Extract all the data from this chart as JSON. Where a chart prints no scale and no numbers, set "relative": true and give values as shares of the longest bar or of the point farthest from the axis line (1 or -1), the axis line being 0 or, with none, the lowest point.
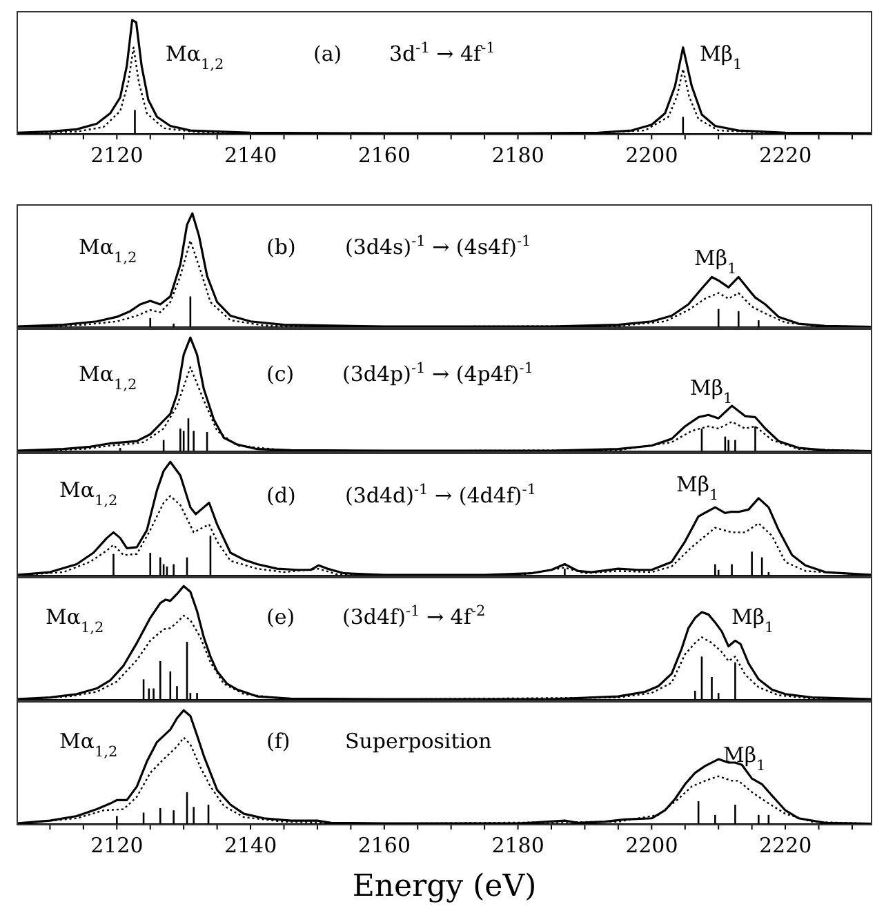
{
  "chart_data": [
    {
      "type": "line",
      "relative": true,
      "xlim": [
        2105,
        2233
      ],
      "xticks": [
        {
          "value": 2110,
          "label": null
        },
        {
          "value": 2115,
          "label": null
        },
        2120,
        {
          "value": 2125,
          "label": null
        },
        {
          "value": 2130,
          "label": null
        },
        {
          "value": 2135,
          "label": null
        },
        2140,
        {
          "value": 2145,
          "label": null
        },
        {
          "value": 2150,
          "label": null
        },
        {
          "value": 2155,
          "label": null
        },
        2160,
        {
          "value": 2165,
          "label": null
        },
        {
          "value": 2170,
          "label": null
        },
        {
          "value": 2175,
          "label": null
        },
        2180,
        {
          "value": 2185,
          "label": null
        },
        {
          "value": 2190,
          "label": null
        },
        {
          "value": 2195,
          "label": null
        },
        2200,
        {
          "value": 2205,
          "label": null
        },
        {
          "value": 2210,
          "label": null
        },
        {
          "value": 2215,
          "label": null
        },
        2220,
        {
          "value": 2225,
          "label": null
        },
        {
          "value": 2230,
          "label": null
        }
      ],
      "tick_labels": "x",
      "annotations": [
        "Mα$_{1,2}$",
        "(a)",
        "3d$^{-1}$ → 4f$^{-1}$",
        "Mβ$_{1}$"
      ],
      "series": [
        {
          "color": "#000000",
          "x": [
            2105,
            2110,
            2114,
            2117,
            2119,
            2120.5,
            2121.5,
            2122.3,
            2122.9,
            2123.7,
            2124.7,
            2126,
            2128,
            2131,
            2140,
            2160,
            2180,
            2192,
            2197,
            2200,
            2202,
            2203.5,
            2204.7,
            2206,
            2207.5,
            2209.5,
            2213,
            2220,
            2233
          ],
          "values": [
            0.01,
            0.02,
            0.04,
            0.09,
            0.18,
            0.32,
            0.6,
            1.0,
            0.98,
            0.6,
            0.3,
            0.15,
            0.07,
            0.03,
            0.01,
            0.005,
            0.005,
            0.01,
            0.03,
            0.08,
            0.18,
            0.42,
            0.76,
            0.42,
            0.17,
            0.07,
            0.03,
            0.01,
            0.005
          ]
        },
        {
          "color": "#000000",
          "line_style": "dotted",
          "x": [
            2105,
            2114,
            2118,
            2120.5,
            2121.7,
            2122.5,
            2123.3,
            2124.5,
            2127,
            2132,
            2150,
            2190,
            2199,
            2202.5,
            2203.8,
            2204.7,
            2205.6,
            2207,
            2210,
            2220,
            2233
          ],
          "values": [
            0.005,
            0.02,
            0.06,
            0.2,
            0.45,
            0.76,
            0.45,
            0.18,
            0.05,
            0.015,
            0.003,
            0.003,
            0.03,
            0.15,
            0.33,
            0.57,
            0.33,
            0.13,
            0.03,
            0.005,
            0.002
          ]
        },
        {
          "type": "bar",
          "color": "#000000",
          "x": [
            2122.7,
            2204.7
          ],
          "values": [
            0.21,
            0.15
          ]
        }
      ]
    },
    {
      "type": "line",
      "relative": true,
      "xlim": [
        2105,
        2233
      ],
      "xticks": [
        {
          "value": 2110,
          "label": null
        },
        {
          "value": 2115,
          "label": null
        },
        2120,
        {
          "value": 2125,
          "label": null
        },
        {
          "value": 2130,
          "label": null
        },
        {
          "value": 2135,
          "label": null
        },
        2140,
        {
          "value": 2145,
          "label": null
        },
        {
          "value": 2150,
          "label": null
        },
        {
          "value": 2155,
          "label": null
        },
        2160,
        {
          "value": 2165,
          "label": null
        },
        {
          "value": 2170,
          "label": null
        },
        {
          "value": 2175,
          "label": null
        },
        2180,
        {
          "value": 2185,
          "label": null
        },
        {
          "value": 2190,
          "label": null
        },
        {
          "value": 2195,
          "label": null
        },
        2200,
        {
          "value": 2205,
          "label": null
        },
        {
          "value": 2210,
          "label": null
        },
        {
          "value": 2215,
          "label": null
        },
        2220,
        {
          "value": 2225,
          "label": null
        },
        {
          "value": 2230,
          "label": null
        }
      ],
      "tick_labels": false,
      "annotations": [
        "Mα$_{1,2}$",
        "(b)",
        "(3d4s)$^{-1}$ → (4s4f)$^{-1}$",
        "Mβ$_{1}$"
      ],
      "series": [
        {
          "color": "#000000",
          "x": [
            2105,
            2112,
            2117,
            2120,
            2122,
            2123.5,
            2125,
            2126.5,
            2128,
            2129.5,
            2130.5,
            2131.3,
            2132.3,
            2133.5,
            2135,
            2137,
            2140,
            2145,
            2160,
            2185,
            2195,
            2200,
            2203,
            2205.5,
            2207.5,
            2209,
            2210,
            2211.5,
            2213,
            2214.5,
            2215.5,
            2217,
            2219,
            2222,
            2226,
            2233
          ],
          "values": [
            0.005,
            0.02,
            0.05,
            0.09,
            0.14,
            0.2,
            0.23,
            0.2,
            0.27,
            0.55,
            0.9,
            1.0,
            0.8,
            0.45,
            0.22,
            0.1,
            0.05,
            0.02,
            0.005,
            0.005,
            0.02,
            0.05,
            0.1,
            0.2,
            0.34,
            0.44,
            0.41,
            0.35,
            0.44,
            0.33,
            0.26,
            0.2,
            0.09,
            0.03,
            0.01,
            0.003
          ]
        },
        {
          "color": "#000000",
          "line_style": "dotted",
          "x": [
            2105,
            2115,
            2120,
            2123,
            2125,
            2126.5,
            2128,
            2129.5,
            2131,
            2132.5,
            2134,
            2137,
            2142,
            2160,
            2195,
            2202,
            2205.5,
            2208,
            2210,
            2211.5,
            2213,
            2215,
            2217,
            2220,
            2225,
            2233
          ],
          "values": [
            0.003,
            0.02,
            0.05,
            0.1,
            0.15,
            0.13,
            0.22,
            0.45,
            0.76,
            0.5,
            0.22,
            0.06,
            0.015,
            0.003,
            0.01,
            0.05,
            0.15,
            0.25,
            0.3,
            0.25,
            0.3,
            0.18,
            0.12,
            0.04,
            0.01,
            0.002
          ]
        },
        {
          "type": "bar",
          "color": "#000000",
          "x": [
            2125,
            2128.5,
            2131,
            2210,
            2213,
            2216
          ],
          "values": [
            0.08,
            0.03,
            0.27,
            0.16,
            0.14,
            0.06
          ]
        }
      ]
    },
    {
      "type": "line",
      "relative": true,
      "xlim": [
        2105,
        2233
      ],
      "xticks": [
        {
          "value": 2110,
          "label": null
        },
        {
          "value": 2115,
          "label": null
        },
        2120,
        {
          "value": 2125,
          "label": null
        },
        {
          "value": 2130,
          "label": null
        },
        {
          "value": 2135,
          "label": null
        },
        2140,
        {
          "value": 2145,
          "label": null
        },
        {
          "value": 2150,
          "label": null
        },
        {
          "value": 2155,
          "label": null
        },
        2160,
        {
          "value": 2165,
          "label": null
        },
        {
          "value": 2170,
          "label": null
        },
        {
          "value": 2175,
          "label": null
        },
        2180,
        {
          "value": 2185,
          "label": null
        },
        {
          "value": 2190,
          "label": null
        },
        {
          "value": 2195,
          "label": null
        },
        2200,
        {
          "value": 2205,
          "label": null
        },
        {
          "value": 2210,
          "label": null
        },
        {
          "value": 2215,
          "label": null
        },
        2220,
        {
          "value": 2225,
          "label": null
        },
        {
          "value": 2230,
          "label": null
        }
      ],
      "tick_labels": false,
      "annotations": [
        "Mα$_{1,2}$",
        "(c)",
        "(3d4p)$^{-1}$ → (4p4f)$^{-1}$",
        "Mβ$_{1}$"
      ],
      "series": [
        {
          "color": "#000000",
          "x": [
            2105,
            2112,
            2116,
            2119,
            2121,
            2123,
            2125,
            2127,
            2128,
            2129,
            2130,
            2131,
            2132,
            2133,
            2134.5,
            2136,
            2138,
            2141,
            2146,
            2160,
            2185,
            2195,
            2200,
            2203,
            2205,
            2207,
            2208.5,
            2210,
            2212,
            2214,
            2215.5,
            2217,
            2219,
            2222,
            2226,
            2233
          ],
          "values": [
            0.005,
            0.02,
            0.04,
            0.07,
            0.08,
            0.09,
            0.15,
            0.27,
            0.33,
            0.5,
            0.85,
            1.0,
            0.85,
            0.55,
            0.28,
            0.12,
            0.06,
            0.02,
            0.01,
            0.005,
            0.005,
            0.02,
            0.05,
            0.11,
            0.22,
            0.3,
            0.32,
            0.29,
            0.4,
            0.31,
            0.3,
            0.2,
            0.09,
            0.03,
            0.01,
            0.003
          ]
        },
        {
          "color": "#000000",
          "line_style": "dotted",
          "x": [
            2105,
            2115,
            2119,
            2121,
            2124,
            2127,
            2129,
            2131,
            2133,
            2135,
            2138,
            2145,
            2160,
            2195,
            2203,
            2206,
            2208.5,
            2210,
            2212,
            2214,
            2215.5,
            2218,
            2222,
            2233
          ],
          "values": [
            0.003,
            0.02,
            0.05,
            0.06,
            0.08,
            0.2,
            0.4,
            0.74,
            0.45,
            0.18,
            0.05,
            0.01,
            0.003,
            0.01,
            0.08,
            0.18,
            0.22,
            0.2,
            0.26,
            0.2,
            0.22,
            0.1,
            0.02,
            0.002
          ]
        },
        {
          "type": "bar",
          "color": "#000000",
          "x": [
            2120.5,
            2127,
            2129.5,
            2130,
            2130.7,
            2131.5,
            2133.5,
            2207.5,
            2211,
            2211.5,
            2212.5,
            2215.5
          ],
          "values": [
            0.03,
            0.1,
            0.2,
            0.18,
            0.29,
            0.18,
            0.17,
            0.2,
            0.13,
            0.1,
            0.1,
            0.22
          ]
        }
      ]
    },
    {
      "type": "line",
      "relative": true,
      "xlim": [
        2105,
        2233
      ],
      "xticks": [
        {
          "value": 2110,
          "label": null
        },
        {
          "value": 2115,
          "label": null
        },
        2120,
        {
          "value": 2125,
          "label": null
        },
        {
          "value": 2130,
          "label": null
        },
        {
          "value": 2135,
          "label": null
        },
        2140,
        {
          "value": 2145,
          "label": null
        },
        {
          "value": 2150,
          "label": null
        },
        {
          "value": 2155,
          "label": null
        },
        2160,
        {
          "value": 2165,
          "label": null
        },
        {
          "value": 2170,
          "label": null
        },
        {
          "value": 2175,
          "label": null
        },
        2180,
        {
          "value": 2185,
          "label": null
        },
        {
          "value": 2190,
          "label": null
        },
        {
          "value": 2195,
          "label": null
        },
        2200,
        {
          "value": 2205,
          "label": null
        },
        {
          "value": 2210,
          "label": null
        },
        {
          "value": 2215,
          "label": null
        },
        2220,
        {
          "value": 2225,
          "label": null
        },
        {
          "value": 2230,
          "label": null
        }
      ],
      "tick_labels": false,
      "annotations": [
        "Mα$_{1,2}$",
        "(d)",
        "(3d4d)$^{-1}$ → (4d4f)$^{-1}$",
        "Mβ$_{1}$"
      ],
      "series": [
        {
          "color": "#000000",
          "x": [
            2105,
            2110,
            2114,
            2116.5,
            2118.5,
            2119.5,
            2120.5,
            2121.5,
            2123,
            2124.5,
            2126,
            2127,
            2128,
            2129.5,
            2131,
            2131.8,
            2133,
            2133.8,
            2135,
            2137,
            2139,
            2141,
            2144,
            2147,
            2149,
            2150.2,
            2151.5,
            2154,
            2160,
            2175,
            2182,
            2185,
            2187,
            2189,
            2191,
            2195,
            2198,
            2200,
            2203,
            2205,
            2207,
            2209.5,
            2211,
            2211.8,
            2213,
            2214.5,
            2216,
            2217.5,
            2219,
            2221,
            2223,
            2226,
            2233
          ],
          "values": [
            0.005,
            0.03,
            0.1,
            0.2,
            0.33,
            0.38,
            0.33,
            0.24,
            0.25,
            0.4,
            0.75,
            0.92,
            1.0,
            0.88,
            0.6,
            0.54,
            0.6,
            0.64,
            0.45,
            0.2,
            0.14,
            0.1,
            0.06,
            0.05,
            0.05,
            0.09,
            0.06,
            0.02,
            0.005,
            0.005,
            0.02,
            0.05,
            0.1,
            0.04,
            0.03,
            0.06,
            0.05,
            0.05,
            0.12,
            0.3,
            0.52,
            0.6,
            0.55,
            0.56,
            0.56,
            0.58,
            0.68,
            0.6,
            0.4,
            0.18,
            0.09,
            0.03,
            0.005
          ]
        },
        {
          "color": "#000000",
          "line_style": "dotted",
          "x": [
            2105,
            2112,
            2116,
            2118.5,
            2119.5,
            2121,
            2123,
            2125,
            2127,
            2128,
            2129.5,
            2131.5,
            2133.8,
            2135,
            2137,
            2141,
            2145,
            2150.2,
            2153,
            2160,
            2180,
            2187,
            2190,
            2195,
            2200,
            2203,
            2206,
            2209.5,
            2212,
            2214,
            2216,
            2218,
            2220,
            2223,
            2233
          ],
          "values": [
            0.003,
            0.03,
            0.12,
            0.22,
            0.27,
            0.18,
            0.19,
            0.4,
            0.64,
            0.7,
            0.62,
            0.38,
            0.45,
            0.3,
            0.13,
            0.06,
            0.03,
            0.06,
            0.01,
            0.003,
            0.003,
            0.07,
            0.02,
            0.04,
            0.03,
            0.08,
            0.25,
            0.42,
            0.38,
            0.38,
            0.46,
            0.35,
            0.12,
            0.04,
            0.003
          ]
        },
        {
          "type": "bar",
          "color": "#000000",
          "x": [
            2119.5,
            2125,
            2126.5,
            2127,
            2127.5,
            2128.5,
            2130.5,
            2134,
            2187,
            2209.5,
            2210,
            2212,
            2215,
            2216.5,
            2217.5
          ],
          "values": [
            0.19,
            0.2,
            0.16,
            0.1,
            0.08,
            0.1,
            0.16,
            0.35,
            0.06,
            0.1,
            0.05,
            0.1,
            0.21,
            0.16,
            0.03
          ]
        }
      ]
    },
    {
      "type": "line",
      "relative": true,
      "xlim": [
        2105,
        2233
      ],
      "xticks": [
        {
          "value": 2110,
          "label": null
        },
        {
          "value": 2115,
          "label": null
        },
        2120,
        {
          "value": 2125,
          "label": null
        },
        {
          "value": 2130,
          "label": null
        },
        {
          "value": 2135,
          "label": null
        },
        2140,
        {
          "value": 2145,
          "label": null
        },
        {
          "value": 2150,
          "label": null
        },
        {
          "value": 2155,
          "label": null
        },
        2160,
        {
          "value": 2165,
          "label": null
        },
        {
          "value": 2170,
          "label": null
        },
        {
          "value": 2175,
          "label": null
        },
        2180,
        {
          "value": 2185,
          "label": null
        },
        {
          "value": 2190,
          "label": null
        },
        {
          "value": 2195,
          "label": null
        },
        2200,
        {
          "value": 2205,
          "label": null
        },
        {
          "value": 2210,
          "label": null
        },
        {
          "value": 2215,
          "label": null
        },
        2220,
        {
          "value": 2225,
          "label": null
        },
        {
          "value": 2230,
          "label": null
        }
      ],
      "tick_labels": false,
      "annotations": [
        "Mα$_{1,2}$",
        "(e)",
        "(3d4f)$^{-1}$ → 4f$^{-2}$",
        "Mβ$_{1}$"
      ],
      "series": [
        {
          "color": "#000000",
          "x": [
            2105,
            2110,
            2114,
            2117,
            2119,
            2121,
            2123,
            2125,
            2126.5,
            2127.3,
            2128,
            2129,
            2130,
            2131,
            2132,
            2133,
            2134,
            2135,
            2136.5,
            2138,
            2141,
            2146,
            2160,
            2185,
            2195,
            2199,
            2201,
            2203,
            2204.5,
            2205.5,
            2206.5,
            2207.5,
            2208.5,
            2209.5,
            2210.5,
            2211.5,
            2212.5,
            2213.3,
            2214.5,
            2216,
            2218,
            2220,
            2224,
            2233
          ],
          "values": [
            0.005,
            0.02,
            0.05,
            0.1,
            0.17,
            0.3,
            0.5,
            0.72,
            0.85,
            0.88,
            0.87,
            0.93,
            1.0,
            0.95,
            0.78,
            0.55,
            0.38,
            0.25,
            0.14,
            0.09,
            0.03,
            0.01,
            0.005,
            0.005,
            0.03,
            0.07,
            0.12,
            0.23,
            0.45,
            0.63,
            0.72,
            0.77,
            0.75,
            0.68,
            0.6,
            0.47,
            0.52,
            0.49,
            0.32,
            0.18,
            0.09,
            0.05,
            0.02,
            0.005
          ]
        },
        {
          "color": "#000000",
          "line_style": "dotted",
          "x": [
            2105,
            2113,
            2117,
            2120,
            2123,
            2125,
            2127,
            2128,
            2129,
            2130,
            2131,
            2132.5,
            2134,
            2136,
            2139,
            2145,
            2160,
            2195,
            2200,
            2203,
            2205,
            2206.5,
            2207.5,
            2209,
            2210.5,
            2211.5,
            2212.5,
            2214,
            2216,
            2219,
            2224,
            2233
          ],
          "values": [
            0.003,
            0.03,
            0.07,
            0.16,
            0.35,
            0.52,
            0.62,
            0.63,
            0.68,
            0.74,
            0.7,
            0.55,
            0.33,
            0.14,
            0.05,
            0.01,
            0.003,
            0.02,
            0.06,
            0.15,
            0.4,
            0.5,
            0.55,
            0.5,
            0.42,
            0.34,
            0.38,
            0.22,
            0.11,
            0.04,
            0.01,
            0.002
          ]
        },
        {
          "type": "bar",
          "color": "#000000",
          "x": [
            2124,
            2124.8,
            2125.5,
            2126.5,
            2128,
            2129,
            2130.5,
            2131,
            2132,
            2206.5,
            2207.5,
            2209,
            2210,
            2212.5
          ],
          "values": [
            0.18,
            0.1,
            0.1,
            0.34,
            0.25,
            0.12,
            0.51,
            0.06,
            0.06,
            0.08,
            0.38,
            0.2,
            0.06,
            0.33
          ]
        }
      ]
    },
    {
      "type": "line",
      "relative": true,
      "xlim": [
        2105,
        2233
      ],
      "xticks": [
        {
          "value": 2110,
          "label": null
        },
        {
          "value": 2115,
          "label": null
        },
        2120,
        {
          "value": 2125,
          "label": null
        },
        {
          "value": 2130,
          "label": null
        },
        {
          "value": 2135,
          "label": null
        },
        2140,
        {
          "value": 2145,
          "label": null
        },
        {
          "value": 2150,
          "label": null
        },
        {
          "value": 2155,
          "label": null
        },
        2160,
        {
          "value": 2165,
          "label": null
        },
        {
          "value": 2170,
          "label": null
        },
        {
          "value": 2175,
          "label": null
        },
        2180,
        {
          "value": 2185,
          "label": null
        },
        {
          "value": 2190,
          "label": null
        },
        {
          "value": 2195,
          "label": null
        },
        2200,
        {
          "value": 2205,
          "label": null
        },
        {
          "value": 2210,
          "label": null
        },
        {
          "value": 2215,
          "label": null
        },
        2220,
        {
          "value": 2225,
          "label": null
        },
        {
          "value": 2230,
          "label": null
        }
      ],
      "tick_labels": "x",
      "xlabel": "Energy (eV)",
      "annotations": [
        "Mα$_{1,2}$",
        "(f)",
        "Superposition",
        "Mβ$_{1}$"
      ],
      "series": [
        {
          "color": "#000000",
          "x": [
            2105,
            2110,
            2114,
            2117,
            2119,
            2120,
            2121.5,
            2123,
            2124.5,
            2126,
            2128,
            2129,
            2130,
            2131,
            2132,
            2133,
            2134,
            2135,
            2137,
            2139,
            2142,
            2146,
            2150,
            2152,
            2160,
            2180,
            2187,
            2189,
            2193,
            2196,
            2200,
            2202,
            2203.5,
            2205,
            2206.5,
            2208,
            2210,
            2211.5,
            2212.5,
            2213.5,
            2215,
            2216.5,
            2218,
            2220,
            2222,
            2226,
            2233
          ],
          "values": [
            0.005,
            0.03,
            0.07,
            0.13,
            0.18,
            0.21,
            0.21,
            0.33,
            0.55,
            0.72,
            0.83,
            0.93,
            1.0,
            0.95,
            0.78,
            0.6,
            0.45,
            0.3,
            0.17,
            0.09,
            0.05,
            0.03,
            0.03,
            0.01,
            0.005,
            0.005,
            0.03,
            0.01,
            0.02,
            0.04,
            0.05,
            0.12,
            0.22,
            0.35,
            0.45,
            0.51,
            0.57,
            0.54,
            0.54,
            0.52,
            0.4,
            0.35,
            0.25,
            0.12,
            0.05,
            0.01,
            0.003
          ]
        },
        {
          "color": "#000000",
          "line_style": "dotted",
          "x": [
            2105,
            2114,
            2118,
            2121,
            2123,
            2125,
            2127,
            2129,
            2130,
            2131,
            2132.5,
            2134,
            2136,
            2139,
            2145,
            2160,
            2195,
            2201,
            2204,
            2206,
            2208,
            2210,
            2212,
            2213,
            2215,
            2217,
            2220,
            2224,
            2233
          ],
          "values": [
            0.003,
            0.05,
            0.12,
            0.13,
            0.24,
            0.45,
            0.57,
            0.68,
            0.76,
            0.7,
            0.5,
            0.33,
            0.16,
            0.06,
            0.02,
            0.003,
            0.02,
            0.08,
            0.22,
            0.33,
            0.38,
            0.42,
            0.38,
            0.38,
            0.28,
            0.2,
            0.09,
            0.02,
            0.002
          ]
        },
        {
          "type": "bar",
          "color": "#000000",
          "x": [
            2120,
            2124,
            2126.5,
            2128.5,
            2130.5,
            2131.5,
            2133.7,
            2207,
            2209.5,
            2212.5,
            2216,
            2217.5
          ],
          "values": [
            0.07,
            0.1,
            0.14,
            0.12,
            0.28,
            0.15,
            0.17,
            0.2,
            0.08,
            0.17,
            0.08,
            0.08
          ]
        }
      ]
    }
  ]
}
